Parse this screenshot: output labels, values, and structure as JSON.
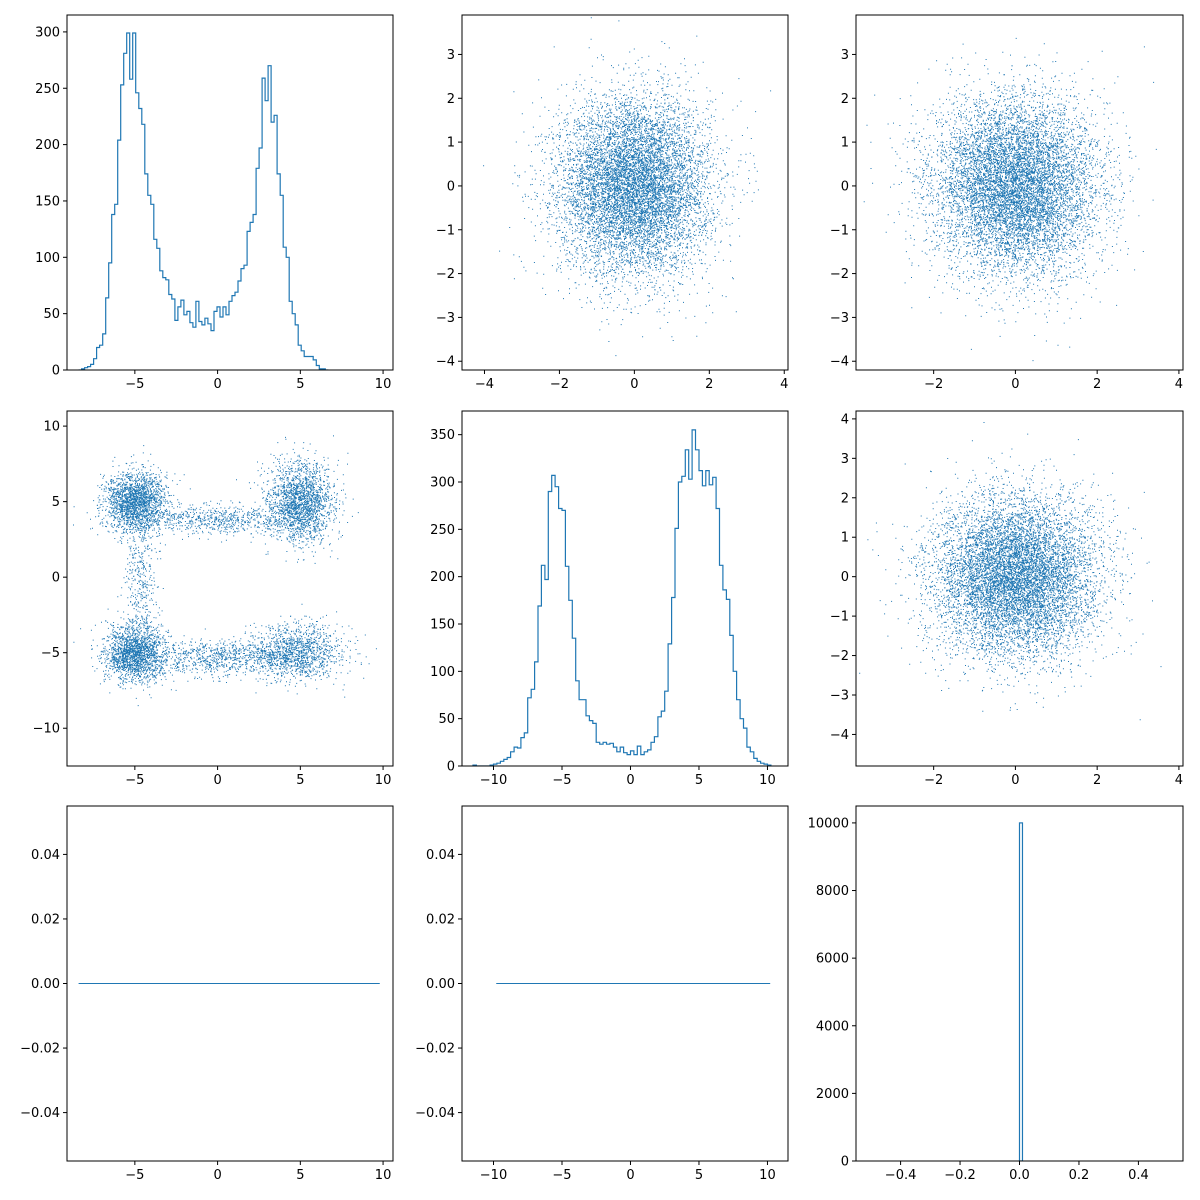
{
  "figure": {
    "background": "#ffffff",
    "series_color": "#1f77b4"
  },
  "chart_data": [
    {
      "type": "histogram",
      "subplot": "row1-col1",
      "xlim": [
        -9.1,
        10.6
      ],
      "ylim": [
        0,
        315
      ],
      "xticks": [
        -5,
        0,
        5,
        10
      ],
      "yticks": [
        0,
        50,
        100,
        150,
        200,
        250,
        300
      ],
      "bin_start": -8.4,
      "bin_width": 0.1818,
      "counts": [
        0,
        1,
        2,
        3,
        5,
        10,
        20,
        22,
        32,
        64,
        95,
        138,
        147,
        204,
        253,
        281,
        299,
        258,
        299,
        246,
        232,
        218,
        174,
        155,
        147,
        116,
        108,
        88,
        82,
        80,
        67,
        63,
        44,
        56,
        62,
        49,
        52,
        42,
        38,
        61,
        43,
        40,
        46,
        41,
        35,
        52,
        56,
        47,
        56,
        49,
        61,
        66,
        69,
        79,
        90,
        93,
        123,
        131,
        138,
        179,
        197,
        259,
        239,
        270,
        220,
        226,
        174,
        155,
        109,
        100,
        61,
        50,
        40,
        22,
        17,
        12,
        12,
        12,
        9,
        4,
        1,
        1,
        0
      ]
    },
    {
      "type": "scatter",
      "subplot": "row1-col2",
      "xlim": [
        -4.6,
        4.1
      ],
      "ylim": [
        -4.2,
        3.9
      ],
      "xticks": [
        -4,
        -2,
        0,
        2,
        4
      ],
      "yticks": [
        -4,
        -3,
        -2,
        -1,
        0,
        1,
        2,
        3
      ],
      "distribution": {
        "x_center": 0,
        "x_sd": 1,
        "y_center": 0,
        "y_sd": 1
      }
    },
    {
      "type": "scatter",
      "subplot": "row1-col3",
      "xlim": [
        -3.9,
        4.1
      ],
      "ylim": [
        -4.2,
        3.9
      ],
      "xticks": [
        -2,
        0,
        2,
        4
      ],
      "yticks": [
        -4,
        -3,
        -2,
        -1,
        0,
        1,
        2,
        3
      ],
      "distribution": {
        "x_center": 0,
        "x_sd": 1,
        "y_center": 0,
        "y_sd": 1
      }
    },
    {
      "type": "scatter",
      "subplot": "row2-col1",
      "xlim": [
        -9.1,
        10.6
      ],
      "ylim": [
        -12.5,
        11.0
      ],
      "xticks": [
        -5,
        0,
        5,
        10
      ],
      "yticks": [
        -10,
        -5,
        0,
        5,
        10
      ],
      "clusters": [
        {
          "cx": -5,
          "cy": 5,
          "sx": 0.9,
          "sy": 1.0,
          "weight": 0.22
        },
        {
          "cx": 5,
          "cy": 5,
          "sx": 1.0,
          "sy": 1.3,
          "weight": 0.22
        },
        {
          "cx": -5,
          "cy": -5,
          "sx": 0.9,
          "sy": 1.0,
          "weight": 0.2
        },
        {
          "cx": 4.8,
          "cy": -5,
          "sx": 1.4,
          "sy": 0.9,
          "weight": 0.14
        },
        {
          "cx": 0,
          "cy": 3.8,
          "sx": 2.6,
          "sy": 0.5,
          "weight": 0.08
        },
        {
          "cx": 0,
          "cy": -5.3,
          "sx": 2.6,
          "sy": 0.6,
          "weight": 0.1
        },
        {
          "cx": -4.7,
          "cy": 0,
          "sx": 0.5,
          "sy": 2.4,
          "weight": 0.04
        }
      ]
    },
    {
      "type": "histogram",
      "subplot": "row2-col2",
      "xlim": [
        -12.3,
        11.5
      ],
      "ylim": [
        0,
        375
      ],
      "xticks": [
        -10,
        -5,
        0,
        5,
        10
      ],
      "yticks": [
        0,
        50,
        100,
        150,
        200,
        250,
        300,
        350
      ],
      "bin_start": -11.5,
      "bin_width": 0.25,
      "counts": [
        1,
        0,
        0,
        0,
        0,
        1,
        2,
        3,
        5,
        7,
        9,
        15,
        20,
        19,
        30,
        35,
        72,
        81,
        110,
        169,
        212,
        197,
        290,
        307,
        295,
        272,
        270,
        211,
        175,
        135,
        90,
        70,
        70,
        53,
        48,
        45,
        25,
        23,
        25,
        23,
        24,
        20,
        15,
        20,
        14,
        12,
        16,
        12,
        21,
        12,
        15,
        17,
        25,
        31,
        52,
        58,
        79,
        129,
        178,
        251,
        300,
        306,
        334,
        303,
        355,
        334,
        312,
        296,
        312,
        297,
        305,
        272,
        212,
        186,
        176,
        138,
        100,
        70,
        50,
        40,
        20,
        15,
        8,
        5,
        3,
        2,
        1
      ]
    },
    {
      "type": "scatter",
      "subplot": "row2-col3",
      "xlim": [
        -3.9,
        4.1
      ],
      "ylim": [
        -4.8,
        4.2
      ],
      "xticks": [
        -2,
        0,
        2,
        4
      ],
      "yticks": [
        -4,
        -3,
        -2,
        -1,
        0,
        1,
        2,
        3,
        4
      ],
      "distribution": {
        "x_center": 0,
        "x_sd": 1,
        "y_center": 0,
        "y_sd": 1
      }
    },
    {
      "type": "scatter",
      "subplot": "row3-col1",
      "xlim": [
        -9.1,
        10.6
      ],
      "ylim": [
        -0.055,
        0.055
      ],
      "xticks": [
        -5,
        0,
        5,
        10
      ],
      "yticks": [
        -0.04,
        -0.02,
        0.0,
        0.02,
        0.04
      ],
      "ytick_labels": [
        "−0.04",
        "−0.02",
        "0.00",
        "0.02",
        "0.04"
      ],
      "y_constant": 0,
      "x_range": [
        -8.4,
        9.8
      ]
    },
    {
      "type": "scatter",
      "subplot": "row3-col2",
      "xlim": [
        -12.3,
        11.5
      ],
      "ylim": [
        -0.055,
        0.055
      ],
      "xticks": [
        -10,
        -5,
        0,
        5,
        10
      ],
      "yticks": [
        -0.04,
        -0.02,
        0.0,
        0.02,
        0.04
      ],
      "ytick_labels": [
        "−0.04",
        "−0.02",
        "0.00",
        "0.02",
        "0.04"
      ],
      "y_constant": 0,
      "x_range": [
        -9.8,
        10.2
      ]
    },
    {
      "type": "histogram",
      "subplot": "row3-col3",
      "xlim": [
        -0.55,
        0.55
      ],
      "ylim": [
        0,
        10500
      ],
      "xticks": [
        -0.4,
        -0.2,
        0.0,
        0.2,
        0.4
      ],
      "xtick_labels": [
        "−0.4",
        "−0.2",
        "0.0",
        "0.2",
        "0.4"
      ],
      "yticks": [
        0,
        2000,
        4000,
        6000,
        8000,
        10000
      ],
      "bars": [
        {
          "x0": 0.0,
          "x1": 0.01,
          "count": 10000
        }
      ]
    }
  ]
}
